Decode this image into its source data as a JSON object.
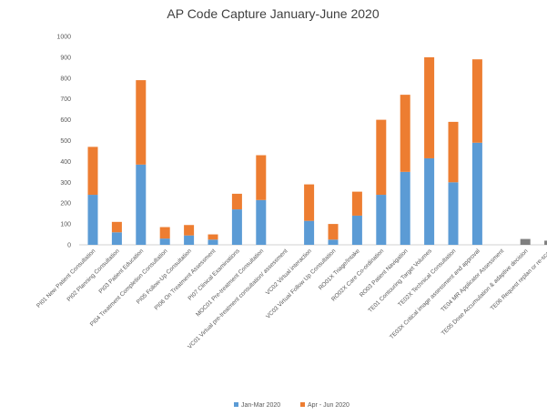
{
  "chart_data": {
    "type": "bar",
    "stacked": true,
    "title": "AP Code Capture January-June 2020",
    "xlabel": "",
    "ylabel": "",
    "ylim": [
      0,
      1000
    ],
    "yticks": [
      0,
      100,
      200,
      300,
      400,
      500,
      600,
      700,
      800,
      900,
      1000
    ],
    "grid": false,
    "legend_position": "bottom",
    "categories": [
      "PI01 New Patient Consultation",
      "PI02 Planning Consultation",
      "PI03 Patient Education",
      "PI04 Treatment Completion Consultation",
      "PI05 Follow-Up Consultation",
      "PI06 On Treatment Assessment",
      "PI07 Clinical Examinations",
      "MOC01 Pre-treatment Consultation",
      "VC01 Virtual pre-treatment consultation/ assessment",
      "VC02 Virtual interaction",
      "VC03 Virtual Follow Up Consultation",
      "RO01X Triage/Intake",
      "RO02X Care Co-ordination",
      "RO03 Patient Navigation",
      "TE01 Contouring Target Volumes",
      "TE02X Technical Consultation",
      "TE03X Critical image assessment and approval",
      "TE04 MR Applicator Assessment",
      "TE05 Dose Accumulation & adaptive decision",
      "TE06 Request replan or re-scan"
    ],
    "series": [
      {
        "name": "Jan-Mar 2020",
        "color": "#5b9bd5",
        "values": [
          240,
          60,
          385,
          30,
          45,
          25,
          170,
          215,
          0,
          115,
          25,
          140,
          240,
          350,
          415,
          300,
          490,
          0,
          0,
          0
        ]
      },
      {
        "name": "Apr - Jun 2020",
        "color": "#ed7d31",
        "values": [
          230,
          50,
          405,
          55,
          50,
          25,
          75,
          215,
          0,
          175,
          75,
          115,
          360,
          370,
          485,
          290,
          400,
          0,
          0,
          0
        ]
      }
    ],
    "extra_bar_color": "#7f7f7f",
    "extra_bars": [
      0,
      0,
      0,
      0,
      0,
      0,
      0,
      0,
      0,
      0,
      0,
      0,
      0,
      0,
      0,
      0,
      0,
      0,
      28,
      20
    ]
  }
}
